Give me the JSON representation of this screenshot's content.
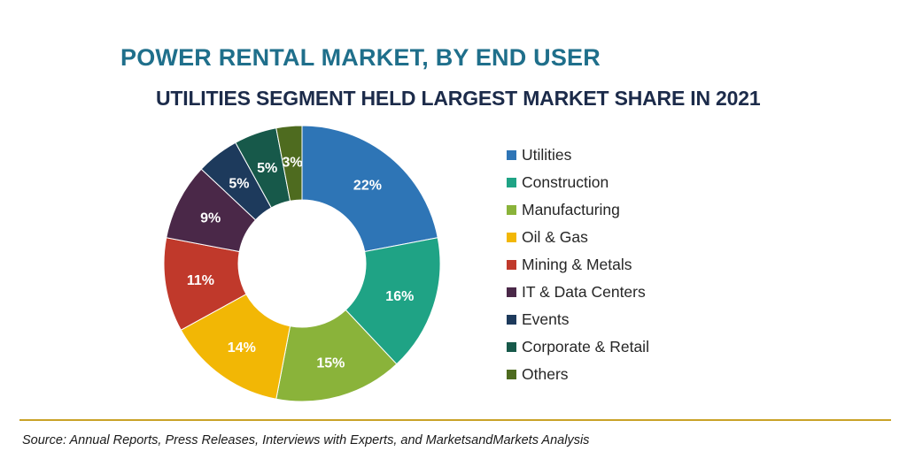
{
  "header": {
    "title": "POWER RENTAL MARKET, BY END USER",
    "subtitle": "UTILITIES SEGMENT HELD LARGEST MARKET SHARE IN 2021"
  },
  "chart_data": {
    "type": "pie",
    "variant": "donut",
    "title": "POWER RENTAL MARKET, BY END USER",
    "subtitle": "UTILITIES SEGMENT HELD LARGEST MARKET SHARE IN 2021",
    "categories": [
      "Utilities",
      "Construction",
      "Manufacturing",
      "Oil & Gas",
      "Mining & Metals",
      "IT & Data Centers",
      "Events",
      "Corporate & Retail",
      "Others"
    ],
    "values": [
      22,
      16,
      15,
      14,
      11,
      9,
      5,
      5,
      3
    ],
    "labels": [
      "22%",
      "16%",
      "15%",
      "14%",
      "11%",
      "9%",
      "5%",
      "5%",
      "3%"
    ],
    "colors": [
      "#2e75b6",
      "#1fa385",
      "#8ab33a",
      "#f2b705",
      "#c0392b",
      "#4a2848",
      "#1d3a5c",
      "#17594a",
      "#4e6b1f"
    ],
    "unit": "%",
    "legend_position": "right"
  },
  "footer": {
    "source": "Source: Annual Reports, Press Releases, Interviews with Experts, and MarketsandMarkets Analysis"
  }
}
